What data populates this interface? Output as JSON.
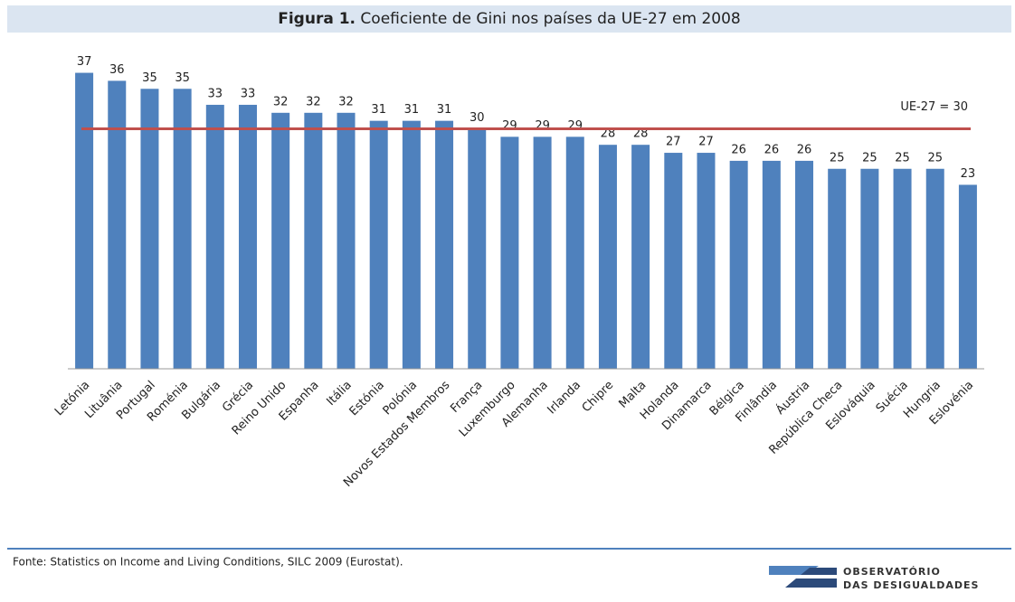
{
  "chart_data": {
    "type": "bar",
    "figure_label": "Figura 1.",
    "title": "Coeficiente de Gini nos países da UE-27 em 2008",
    "categories": [
      "Letónia",
      "Lituânia",
      "Portugal",
      "Roménia",
      "Bulgária",
      "Grécia",
      "Reino Unido",
      "Espanha",
      "Itália",
      "Estónia",
      "Polónia",
      "Novos Estados Membros",
      "França",
      "Luxemburgo",
      "Alemanha",
      "Irlanda",
      "Chipre",
      "Malta",
      "Holanda",
      "Dinamarca",
      "Bélgica",
      "Finlândia",
      "Áustria",
      "República Checa",
      "Eslováquia",
      "Suécia",
      "Hungria",
      "Eslovénia"
    ],
    "values": [
      37,
      36,
      35,
      35,
      33,
      33,
      32,
      32,
      32,
      31,
      31,
      31,
      30,
      29,
      29,
      29,
      28,
      28,
      27,
      27,
      26,
      26,
      26,
      25,
      25,
      25,
      25,
      23
    ],
    "color": "#4f81bd",
    "ylim": [
      0,
      40
    ],
    "reference": {
      "value": 30,
      "label": "UE-27 = 30",
      "color": "#c0504d"
    },
    "source": "Fonte: Statistics on Income and Living Conditions, SILC 2009 (Eurostat).",
    "logo": [
      "OBSERVATÓRIO",
      "DAS DESIGUALDADES"
    ]
  }
}
